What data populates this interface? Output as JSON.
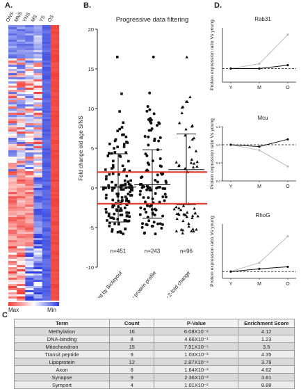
{
  "panels": {
    "a": "A.",
    "b": "B.",
    "c": "C",
    "d": "D."
  },
  "heatmap": {
    "columns": [
      "ONS",
      "MNS",
      "YNS",
      "MS",
      "YS",
      "OS"
    ],
    "legend_max": "Max",
    "legend_min": "Min",
    "colors": {
      "high": "#f2403a",
      "mid": "#ffffff",
      "low": "#2e3fe0"
    }
  },
  "chart_data": [
    {
      "type": "scatter",
      "title": "Progressive data filtering",
      "ylabel": "Fold change old age S/NS",
      "ylim": [
        -10,
        20
      ],
      "yticks": [
        -10,
        -5,
        0,
        5,
        10,
        15,
        20
      ],
      "threshold_lines": [
        2,
        -2
      ],
      "categories": [
        "Filtered by Biolayout",
        "Filtered by protein profile",
        "Filtered by 2-fold change"
      ],
      "counts": [
        "n=451",
        "n=243",
        "n=96"
      ],
      "markers": [
        "square",
        "circle",
        "triangle"
      ],
      "series": [
        {
          "mean": 0.1,
          "sd_upper": 4.3,
          "sd_lower": -4.3,
          "min": -5.8,
          "max": 16.5
        },
        {
          "mean": 0.4,
          "sd_upper": 4.8,
          "sd_lower": -3.8,
          "min": -5.8,
          "max": 16.5
        },
        {
          "mean": 2.3,
          "sd_upper": 6.8,
          "sd_lower": -2.1,
          "min": -5.7,
          "max": 16.5
        }
      ]
    },
    {
      "type": "line",
      "title": "Rab31",
      "ylabel": "Protein expression ratio Vs young",
      "x": [
        "Y",
        "M",
        "O"
      ],
      "series": [
        {
          "color": "#bbbbbb",
          "values": [
            1.0,
            1.35,
            3.5
          ]
        },
        {
          "color": "#111111",
          "values": [
            1.0,
            1.0,
            1.25
          ]
        }
      ],
      "reference_line": 1.0,
      "ylim": [
        0,
        4
      ]
    },
    {
      "type": "line",
      "title": "Mcu",
      "ylabel": "Protein expression ratio Vs young",
      "x": [
        "Y",
        "M",
        "O"
      ],
      "series": [
        {
          "color": "#bbbbbb",
          "values": [
            1.0,
            0.85,
            0.4
          ]
        },
        {
          "color": "#111111",
          "values": [
            1.0,
            0.95,
            1.15
          ]
        }
      ],
      "reference_line": 1.0,
      "ylim": [
        0,
        1.5
      ],
      "yticks": [
        "0.0",
        "0.5",
        "1.0",
        "1.5"
      ]
    },
    {
      "type": "line",
      "title": "RhoG",
      "ylabel": "Protein expression ratio Vs young",
      "x": [
        "Y",
        "M",
        "O"
      ],
      "series": [
        {
          "color": "#bbbbbb",
          "values": [
            1.0,
            2.3,
            6.2
          ]
        },
        {
          "color": "#111111",
          "values": [
            1.0,
            1.4,
            1.7
          ]
        }
      ],
      "reference_line": 1.0,
      "ylim": [
        0,
        8
      ]
    }
  ],
  "table": {
    "headers": [
      "Term",
      "Count",
      "P-Value",
      "Enrichment Score"
    ],
    "rows": [
      [
        "Methylation",
        "16",
        "6.08X10⁻⁸",
        "4.12"
      ],
      [
        "DNA-binding",
        "8",
        "4.66X10⁻¹",
        "1.23"
      ],
      [
        "Mitochondrion",
        "15",
        "7.91X10⁻⁵",
        "3.5"
      ],
      [
        "Transit peptide",
        "9",
        "1.03X10⁻³",
        "4.35"
      ],
      [
        "Lipoprotein",
        "12",
        "2.87X10⁻⁴",
        "3.79"
      ],
      [
        "Axon",
        "8",
        "1.64X10⁻³",
        "4.62"
      ],
      [
        "Synapse",
        "9",
        "2.36X10⁻³",
        "3.81"
      ],
      [
        "Symport",
        "4",
        "1.01X10⁻²",
        "8.88"
      ]
    ]
  }
}
